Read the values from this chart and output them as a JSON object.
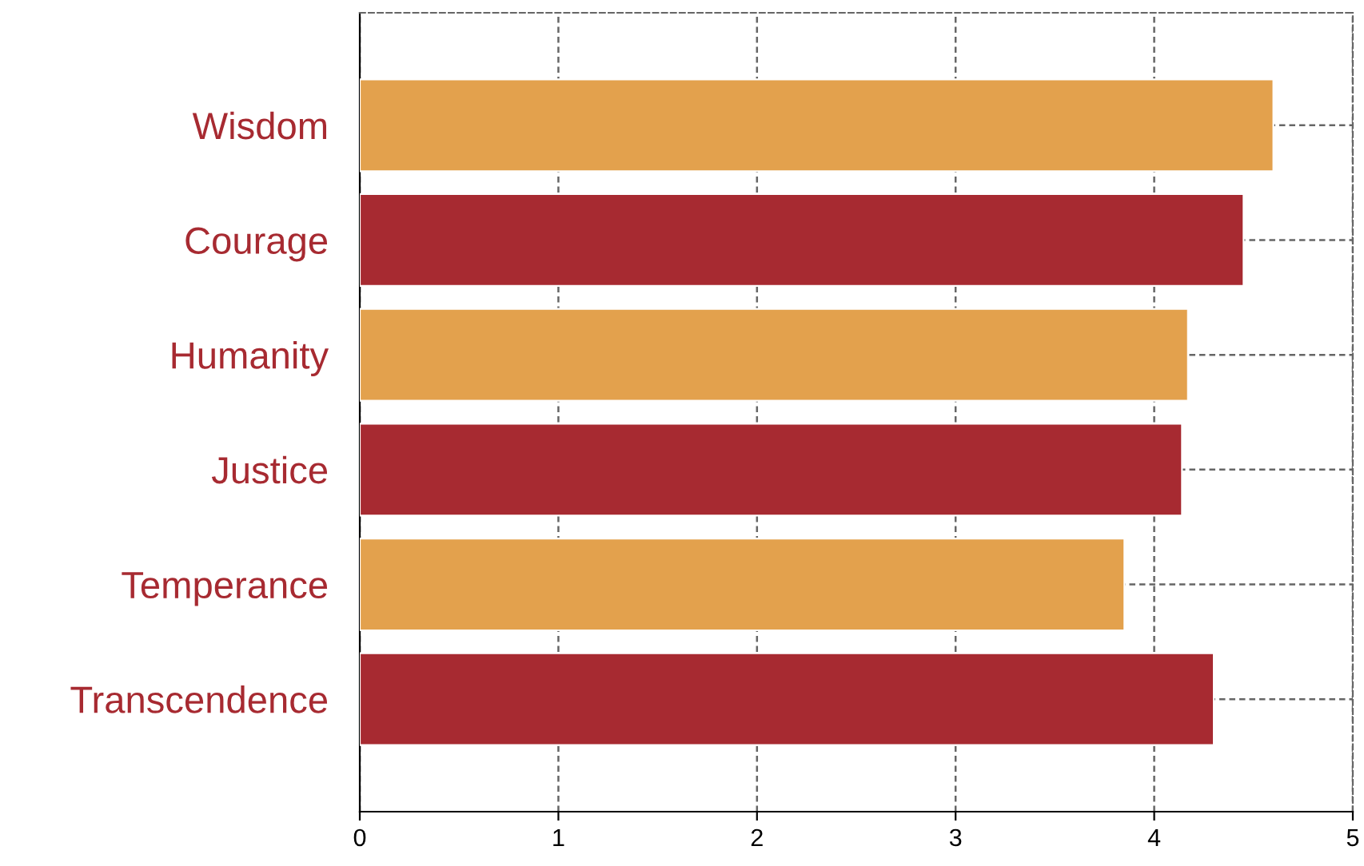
{
  "chart_data": {
    "type": "bar",
    "orientation": "horizontal",
    "categories": [
      "Wisdom",
      "Courage",
      "Humanity",
      "Justice",
      "Temperance",
      "Transcendence"
    ],
    "values": [
      4.6,
      4.45,
      4.17,
      4.14,
      3.85,
      4.3
    ],
    "colors": [
      "#e3a14d",
      "#a72a31",
      "#e3a14d",
      "#a72a31",
      "#e3a14d",
      "#a72a31"
    ],
    "xlim": [
      0,
      5
    ],
    "xticks": [
      0,
      1,
      2,
      3,
      4,
      5
    ],
    "grid": true
  }
}
